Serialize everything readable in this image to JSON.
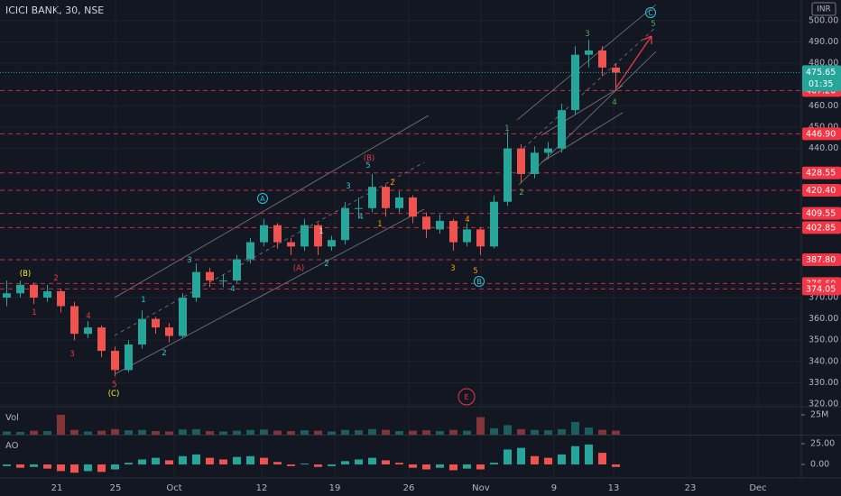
{
  "chart_data": {
    "type": "candlestick",
    "title": "ICICI BANK, 30, NSE",
    "currency": "INR",
    "countdown": "01:35",
    "volume_label": "Vol",
    "ao_label": "AO",
    "up_color": "#26a69a",
    "down_color": "#ef5350",
    "grid": true,
    "x": [
      0.5,
      1.5,
      2.5,
      3.5,
      4.5,
      5.5,
      6.5,
      7.5,
      8.5,
      9.5,
      10.5,
      11.5,
      12.5,
      13.5,
      14.5,
      15.5,
      16.5,
      17.5,
      18.5,
      19.5,
      20.5,
      21.5,
      22.5,
      23.5,
      24.5,
      25.5,
      26.5,
      27.5,
      28.5,
      29.5,
      30.5,
      31.5,
      32.5,
      33.5,
      34.5,
      35.5,
      36.5,
      37.5,
      38.5,
      39.5,
      40.5,
      41.5,
      42.5,
      43.5,
      44.5,
      45.5
    ],
    "open": [
      370,
      372,
      376,
      370,
      373,
      366,
      353,
      356,
      345,
      336,
      348,
      360,
      356,
      352,
      370,
      382,
      378,
      378,
      388,
      396,
      404,
      396,
      394,
      404,
      394,
      397,
      412,
      412,
      422,
      412,
      417,
      408,
      402,
      406,
      396,
      402,
      394,
      415,
      440,
      428,
      438,
      440,
      458,
      484,
      486,
      478
    ],
    "high": [
      378,
      378,
      377,
      376,
      374,
      368,
      359,
      357,
      347,
      350,
      364,
      361,
      358,
      372,
      386,
      384,
      381,
      390,
      398,
      407,
      405,
      398,
      407,
      405,
      399,
      415,
      417,
      428,
      423,
      420,
      418,
      410,
      409,
      407,
      405,
      403,
      418,
      448,
      442,
      441,
      443,
      461,
      488,
      491,
      488,
      480
    ],
    "low": [
      366,
      370,
      367,
      368,
      363,
      350,
      351,
      342,
      333,
      335,
      346,
      353,
      349,
      351,
      368,
      375,
      375,
      377,
      386,
      394,
      393,
      390,
      392,
      390,
      392,
      395,
      407,
      410,
      408,
      410,
      405,
      398,
      400,
      392,
      394,
      390,
      393,
      413,
      424,
      426,
      435,
      438,
      456,
      478,
      474,
      467
    ],
    "close": [
      372,
      376,
      370,
      373,
      366,
      353,
      356,
      345,
      336,
      348,
      360,
      356,
      352,
      370,
      382,
      378,
      378,
      388,
      396,
      404,
      396,
      394,
      404,
      394,
      397,
      412,
      412,
      422,
      412,
      417,
      408,
      402,
      406,
      396,
      402,
      394,
      415,
      440,
      428,
      438,
      440,
      458,
      484,
      486,
      478,
      475.65
    ],
    "volume": [
      4000000,
      3500000,
      5000000,
      4500000,
      25000000,
      6000000,
      4000000,
      5000000,
      7000000,
      5500000,
      6000000,
      4500000,
      4000000,
      6500000,
      7000000,
      4500000,
      4000000,
      5000000,
      6000000,
      6500000,
      5000000,
      4500000,
      5500000,
      5000000,
      4000000,
      6000000,
      5500000,
      7000000,
      6000000,
      4500000,
      5000000,
      5500000,
      4500000,
      6000000,
      5000000,
      22000000,
      8000000,
      12000000,
      7000000,
      6000000,
      5500000,
      7000000,
      16000000,
      9000000,
      6000000,
      5000000
    ],
    "ao": [
      -2,
      -4,
      -3,
      -5,
      -8,
      -10,
      -8,
      -9,
      -6,
      2,
      6,
      8,
      5,
      10,
      12,
      8,
      6,
      9,
      10,
      8,
      3,
      -2,
      1,
      -3,
      -2,
      4,
      6,
      8,
      5,
      2,
      -4,
      -6,
      -4,
      -7,
      -5,
      -6,
      2,
      18,
      20,
      10,
      8,
      12,
      22,
      24,
      14,
      -3
    ],
    "xlim": [
      0,
      59.2
    ],
    "xticks": [
      {
        "value": 4.2,
        "label": "21"
      },
      {
        "value": 8.53,
        "label": "25"
      },
      {
        "value": 12.87,
        "label": "Oct"
      },
      {
        "value": 19.33,
        "label": "12"
      },
      {
        "value": 24.73,
        "label": "19"
      },
      {
        "value": 30.2,
        "label": "26"
      },
      {
        "value": 35.53,
        "label": "Nov"
      },
      {
        "value": 40.93,
        "label": "9"
      },
      {
        "value": 45.33,
        "label": "13"
      },
      {
        "value": 51,
        "label": "23"
      },
      {
        "value": 56,
        "label": "Dec"
      }
    ],
    "ylim": [
      319.2,
      509.7
    ],
    "yticks": [
      {
        "value": 500,
        "label": "500.00"
      },
      {
        "value": 490,
        "label": "490.00"
      },
      {
        "value": 480,
        "label": "480.00"
      },
      {
        "value": 460,
        "label": "460.00"
      },
      {
        "value": 450,
        "label": "450.00"
      },
      {
        "value": 440,
        "label": "440.00"
      },
      {
        "value": 370,
        "label": "370.00"
      },
      {
        "value": 360,
        "label": "360.00"
      },
      {
        "value": 350,
        "label": "350.00"
      },
      {
        "value": 340,
        "label": "340.00"
      },
      {
        "value": 330,
        "label": "330.00"
      },
      {
        "value": 320,
        "label": "320.00"
      }
    ],
    "levels": [
      {
        "value": 467.2,
        "label": "467.20"
      },
      {
        "value": 446.9,
        "label": "446.90"
      },
      {
        "value": 428.55,
        "label": "428.55"
      },
      {
        "value": 420.4,
        "label": "420.40"
      },
      {
        "value": 409.55,
        "label": "409.55"
      },
      {
        "value": 402.85,
        "label": "402.85"
      },
      {
        "value": 387.8,
        "label": "387.80"
      },
      {
        "value": 376.6,
        "label": "376.60"
      },
      {
        "value": 374.05,
        "label": "374.05"
      }
    ],
    "level_color": "#f23645",
    "volume_ylim": [
      0,
      34000000
    ],
    "volume_yticks": [
      {
        "value": 25000000,
        "label": "25M"
      }
    ],
    "ao_ylim": [
      -16.3,
      34.8
    ],
    "ao_yticks": [
      {
        "value": 25,
        "label": "25.00"
      },
      {
        "value": 0,
        "label": "0.00"
      }
    ],
    "annotations": [
      {
        "text": "(B)",
        "color": "#f5eb3b"
      },
      {
        "text": "1",
        "color": "#f23645"
      },
      {
        "text": "2",
        "color": "#f23645"
      },
      {
        "text": "3",
        "color": "#f23645"
      },
      {
        "text": "4",
        "color": "#f23645"
      },
      {
        "text": "5",
        "color": "#f23645"
      },
      {
        "text": "(C)",
        "color": "#f5eb3b"
      },
      {
        "text": "1",
        "color": "#26c6da"
      },
      {
        "text": "2",
        "color": "#26c6da"
      },
      {
        "text": "3",
        "color": "#26c6da"
      },
      {
        "text": "4",
        "color": "#26c6da"
      },
      {
        "text": "A",
        "color": "#26c6da"
      },
      {
        "text": "(A)",
        "color": "#f23645"
      },
      {
        "text": "1",
        "color": "#e0e0e0"
      },
      {
        "text": "2",
        "color": "#26c6da"
      },
      {
        "text": "3",
        "color": "#26c6da"
      },
      {
        "text": "4",
        "color": "#26c6da"
      },
      {
        "text": "5",
        "color": "#26c6da"
      },
      {
        "text": "(B)",
        "color": "#f23645"
      },
      {
        "text": "1",
        "color": "#ff9800"
      },
      {
        "text": "2",
        "color": "#ff9800"
      },
      {
        "text": "3",
        "color": "#ff9800"
      },
      {
        "text": "4",
        "color": "#ff9800"
      },
      {
        "text": "5",
        "color": "#ff9800"
      },
      {
        "text": "B",
        "color": "#26c6da"
      },
      {
        "text": "E",
        "color": "#f23645"
      },
      {
        "text": "1",
        "color": "#4caf50"
      },
      {
        "text": "2",
        "color": "#4caf50"
      },
      {
        "text": "3",
        "color": "#4caf50"
      },
      {
        "text": "4",
        "color": "#4caf50"
      },
      {
        "text": "C",
        "color": "#26c6da"
      },
      {
        "text": "5",
        "color": "#4caf50"
      }
    ]
  }
}
